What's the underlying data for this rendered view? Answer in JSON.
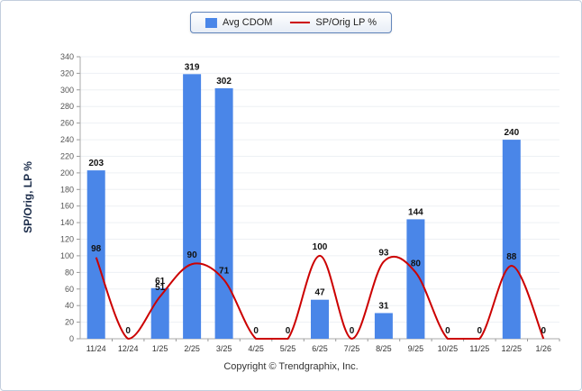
{
  "legend": {
    "items": [
      {
        "label": "Avg CDOM",
        "type": "bar",
        "color": "#4a86e8"
      },
      {
        "label": "SP/Orig LP %",
        "type": "line",
        "color": "#cc0000"
      }
    ]
  },
  "footer": {
    "text": "Copyright © Trendgraphix, Inc."
  },
  "chart_data": {
    "type": "bar+line",
    "categories": [
      "11/24",
      "12/24",
      "1/25",
      "2/25",
      "3/25",
      "4/25",
      "5/25",
      "6/25",
      "7/25",
      "8/25",
      "9/25",
      "10/25",
      "11/25",
      "12/25",
      "1/26"
    ],
    "series": [
      {
        "name": "Avg CDOM",
        "type": "bar",
        "color": "#4a86e8",
        "values": [
          203,
          0,
          61,
          319,
          302,
          0,
          0,
          47,
          0,
          31,
          144,
          0,
          0,
          240,
          0
        ]
      },
      {
        "name": "SP/Orig LP %",
        "type": "line",
        "color": "#cc0000",
        "values": [
          98,
          0,
          51,
          90,
          71,
          0,
          0,
          100,
          0,
          93,
          80,
          0,
          0,
          88,
          0
        ]
      }
    ],
    "ylabel": "SP/Orig, LP %",
    "ylim": [
      0,
      340
    ],
    "ytick_step": 20,
    "grid": "subtle-horizontal",
    "legend_position": "top-center"
  }
}
